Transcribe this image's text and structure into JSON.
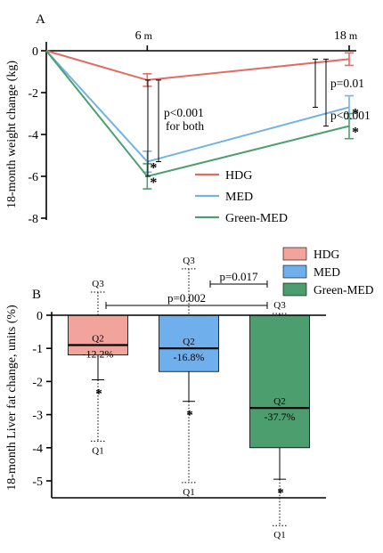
{
  "chart_data": [
    {
      "type": "line",
      "panel_label": "A",
      "title": "",
      "ylabel": "18-month weight change (kg)",
      "xlabel": "",
      "x_ticks": [
        {
          "value": 6,
          "number": "6",
          "unit": "m"
        },
        {
          "value": 18,
          "number": "18",
          "unit": "m"
        }
      ],
      "yticks": [
        "0",
        "-2",
        "-4",
        "-6",
        "-8"
      ],
      "ylim": [
        -8,
        0
      ],
      "xlim": [
        0,
        18
      ],
      "grid": false,
      "legend_position": "bottom-right",
      "series": [
        {
          "name": "HDG",
          "color": "#e36b63",
          "x": [
            0,
            6,
            18
          ],
          "y": [
            0,
            -1.4,
            -0.4
          ],
          "err": [
            0,
            0.3,
            0.3
          ],
          "stars": [
            false,
            false,
            false
          ]
        },
        {
          "name": "MED",
          "color": "#71b3e2",
          "x": [
            0,
            6,
            18
          ],
          "y": [
            0,
            -5.3,
            -2.7
          ],
          "err": [
            0,
            0.5,
            0.55
          ],
          "stars": [
            false,
            true,
            true
          ]
        },
        {
          "name": "Green-MED",
          "color": "#4d9f72",
          "x": [
            0,
            6,
            18
          ],
          "y": [
            0,
            -6.0,
            -3.6
          ],
          "err": [
            0,
            0.6,
            0.6
          ],
          "stars": [
            false,
            true,
            true
          ]
        }
      ],
      "annotations": {
        "p6": "p<0.001",
        "p6b": "for both",
        "p18a": "p=0.01",
        "p18b": "p<0.001",
        "star": "*"
      }
    },
    {
      "type": "bar",
      "panel_label": "B",
      "title": "",
      "ylabel": "18-month Liver fat change, units (%)",
      "xlabel": "",
      "yticks": [
        "0",
        "-1",
        "-2",
        "-3",
        "-4",
        "-5"
      ],
      "ylim": [
        -5.5,
        0.5
      ],
      "grid": false,
      "legend_position": "top-right",
      "categories": [
        "HDG",
        "MED",
        "Green-MED"
      ],
      "colors": [
        "#f2a39b",
        "#6fb0ec",
        "#4c9e6e"
      ],
      "values": [
        -1.2,
        -1.7,
        -4.0
      ],
      "error_low": [
        -1.95,
        -2.6,
        -4.95
      ],
      "q2_values": [
        -0.9,
        -1.0,
        -2.8
      ],
      "q2_label": "Q2",
      "q1_values": [
        -3.8,
        -5.05,
        -6.35
      ],
      "q3_values": [
        0.7,
        1.4,
        0.05
      ],
      "q1_label": "Q1",
      "q3_label": "Q3",
      "percent_labels": [
        "-12.2%",
        "-16.8%",
        "-37.7%"
      ],
      "stars": [
        true,
        true,
        true
      ],
      "comparisons": [
        {
          "from": 0,
          "to": 2,
          "label": "p=0.002"
        },
        {
          "from": 1,
          "to": 2,
          "label": "p=0.017"
        }
      ],
      "star": "*"
    }
  ]
}
